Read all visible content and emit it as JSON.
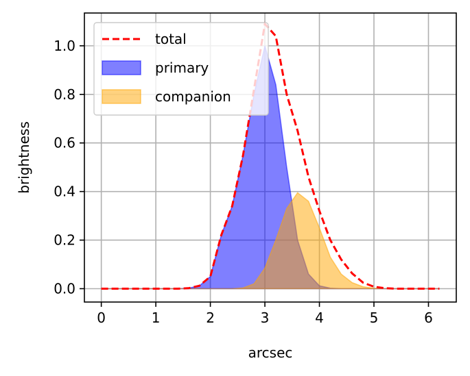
{
  "chart_data": {
    "type": "area",
    "xlabel": "arcsec",
    "ylabel": "brightness",
    "xlim": [
      -0.31,
      6.51
    ],
    "ylim": [
      -0.055,
      1.135
    ],
    "xticks": [
      0,
      1,
      2,
      3,
      4,
      5,
      6
    ],
    "yticks": [
      0.0,
      0.2,
      0.4,
      0.6,
      0.8,
      1.0
    ],
    "ytick_labels": [
      "0.0",
      "0.2",
      "0.4",
      "0.6",
      "0.8",
      "1.0"
    ],
    "grid": true,
    "legend_position": "top-left",
    "x": [
      0.0,
      0.2,
      0.4,
      0.6,
      0.8,
      1.0,
      1.2,
      1.4,
      1.6,
      1.8,
      2.0,
      2.2,
      2.4,
      2.6,
      2.8,
      3.0,
      3.2,
      3.4,
      3.6,
      3.8,
      4.0,
      4.2,
      4.4,
      4.6,
      4.8,
      5.0,
      5.2,
      5.4,
      5.6,
      5.8,
      6.0,
      6.2
    ],
    "series": [
      {
        "name": "total",
        "style": "dashed-line",
        "color": "#ff0000",
        "values": [
          0.0,
          0.0,
          0.0,
          0.0,
          0.0,
          0.0,
          0.0,
          0.0,
          0.002,
          0.012,
          0.05,
          0.22,
          0.34,
          0.55,
          0.82,
          1.09,
          1.04,
          0.8,
          0.65,
          0.46,
          0.32,
          0.2,
          0.12,
          0.063,
          0.025,
          0.008,
          0.002,
          0.0,
          0.0,
          0.0,
          0.0,
          0.0
        ]
      },
      {
        "name": "primary",
        "style": "filled-area",
        "color": "#0000ff",
        "values": [
          0.0,
          0.0,
          0.0,
          0.0,
          0.0,
          0.0,
          0.0,
          0.0,
          0.002,
          0.012,
          0.05,
          0.22,
          0.34,
          0.55,
          0.8,
          1.0,
          0.84,
          0.5,
          0.2,
          0.06,
          0.012,
          0.002,
          0.0,
          0.0,
          0.0,
          0.0,
          0.0,
          0.0,
          0.0,
          0.0,
          0.0,
          0.0
        ]
      },
      {
        "name": "companion",
        "style": "filled-area",
        "color": "#ffa500",
        "values": [
          0.0,
          0.0,
          0.0,
          0.0,
          0.0,
          0.0,
          0.0,
          0.0,
          0.0,
          0.0,
          0.0,
          0.0,
          0.0,
          0.003,
          0.02,
          0.085,
          0.2,
          0.33,
          0.395,
          0.36,
          0.25,
          0.13,
          0.06,
          0.025,
          0.008,
          0.002,
          0.0,
          0.0,
          0.0,
          0.0,
          0.0,
          0.0
        ]
      }
    ]
  }
}
